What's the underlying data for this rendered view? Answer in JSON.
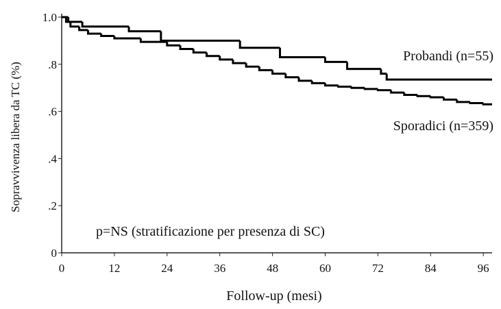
{
  "chart_data": {
    "type": "step",
    "ylabel": "Sopravvivenza libera da TC (%)",
    "xlabel": "Follow-up (mesi)",
    "annotation": "p=NS (stratificazione per presenza di SC)",
    "xlim": [
      0,
      98
    ],
    "ylim": [
      0,
      1
    ],
    "xticks": [
      0,
      12,
      24,
      36,
      48,
      60,
      72,
      84,
      96
    ],
    "yticks": [
      0,
      {
        "value": 0.2,
        "label": ".2"
      },
      {
        "value": 0.4,
        "label": ".4"
      },
      {
        "value": 0.6,
        "label": ".6"
      },
      {
        "value": 0.8,
        "label": ".8"
      },
      {
        "value": 1,
        "label": "1.0"
      }
    ],
    "series": [
      {
        "name": "Probandi (n=55)",
        "color": "#000000",
        "x": [
          0,
          1.5,
          4.7,
          15.3,
          22.6,
          40.6,
          49.7,
          60,
          65,
          72.7,
          74,
          98
        ],
        "values": [
          1,
          0.98,
          0.96,
          0.94,
          0.9,
          0.87,
          0.83,
          0.81,
          0.78,
          0.76,
          0.735,
          0.735
        ]
      },
      {
        "name": "Sporadici (n=359)",
        "color": "#000000",
        "x": [
          0,
          1,
          2,
          4,
          6,
          9,
          12,
          18,
          24,
          27,
          30,
          33,
          36,
          39,
          42,
          45,
          48,
          51,
          54,
          57,
          60,
          63,
          66,
          69,
          72,
          75,
          78,
          81,
          84,
          87,
          90,
          93,
          96,
          98
        ],
        "values": [
          1,
          0.98,
          0.96,
          0.945,
          0.93,
          0.92,
          0.91,
          0.895,
          0.88,
          0.865,
          0.85,
          0.835,
          0.82,
          0.805,
          0.79,
          0.775,
          0.76,
          0.745,
          0.73,
          0.72,
          0.71,
          0.705,
          0.7,
          0.695,
          0.69,
          0.68,
          0.67,
          0.665,
          0.66,
          0.65,
          0.64,
          0.635,
          0.63,
          0.63
        ]
      }
    ]
  }
}
